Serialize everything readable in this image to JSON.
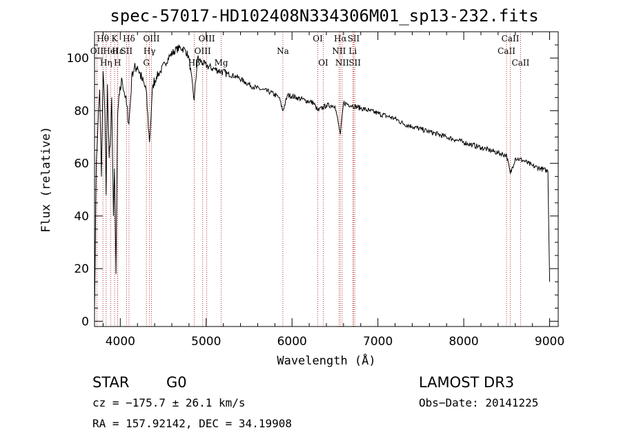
{
  "chart_data": {
    "type": "line",
    "title": "spec-57017-HD102408N334306M01_sp13-232.fits",
    "xlabel": "Wavelength (Å)",
    "ylabel": "Flux (relative)",
    "xlim": [
      3700,
      9100
    ],
    "ylim": [
      -2,
      110
    ],
    "xticks": [
      4000,
      5000,
      6000,
      7000,
      8000,
      9000
    ],
    "yticks": [
      0,
      20,
      40,
      60,
      80,
      100
    ],
    "grid": false,
    "series": [
      {
        "name": "flux",
        "x": [
          3700,
          3720,
          3740,
          3760,
          3780,
          3800,
          3820,
          3835,
          3850,
          3870,
          3889,
          3900,
          3920,
          3933,
          3950,
          3968,
          3990,
          4020,
          4060,
          4101,
          4140,
          4200,
          4250,
          4300,
          4340,
          4380,
          4420,
          4470,
          4520,
          4580,
          4640,
          4700,
          4760,
          4800,
          4861,
          4900,
          4960,
          5010,
          5080,
          5170,
          5250,
          5350,
          5450,
          5550,
          5650,
          5750,
          5850,
          5893,
          5950,
          6050,
          6150,
          6250,
          6300,
          6400,
          6500,
          6563,
          6600,
          6700,
          6800,
          6900,
          7000,
          7100,
          7200,
          7300,
          7400,
          7500,
          7600,
          7700,
          7800,
          7900,
          8000,
          8100,
          8200,
          8300,
          8400,
          8500,
          8542,
          8600,
          8700,
          8800,
          8900,
          8980,
          9000
        ],
        "y": [
          4,
          60,
          75,
          88,
          55,
          95,
          80,
          48,
          90,
          62,
          72,
          85,
          40,
          58,
          18,
          78,
          86,
          92,
          85,
          75,
          95,
          97,
          92,
          88,
          68,
          90,
          93,
          95,
          98,
          101,
          103,
          104,
          103,
          100,
          84,
          100,
          98,
          97,
          96,
          95,
          94,
          93,
          91,
          89,
          88,
          87,
          85,
          80,
          86,
          85,
          84,
          83,
          80,
          82,
          82,
          71,
          83,
          82,
          81,
          80,
          79,
          78,
          77,
          75,
          74,
          73,
          72,
          71,
          70,
          69,
          68,
          67,
          66,
          65,
          64,
          63,
          56,
          62,
          61,
          59,
          58,
          57,
          15
        ]
      }
    ],
    "line_markers": [
      {
        "label": "Hα",
        "x": 6563,
        "row": 0
      },
      {
        "label": "Hβ",
        "x": 4861,
        "row": 2
      },
      {
        "label": "Hγ",
        "x": 4340,
        "row": 1
      },
      {
        "label": "Hδ",
        "x": 4101,
        "row": 0
      },
      {
        "label": "Hε",
        "x": 3970,
        "row": 1
      },
      {
        "label": "Hθ",
        "x": 3798,
        "row": 0
      },
      {
        "label": "Hη",
        "x": 3835,
        "row": 2
      },
      {
        "label": "H",
        "x": 3968,
        "row": 2
      },
      {
        "label": "K",
        "x": 3933,
        "row": 0
      },
      {
        "label": "G",
        "x": 4304,
        "row": 2
      },
      {
        "label": "Mg",
        "x": 5175,
        "row": 2
      },
      {
        "label": "Na",
        "x": 5893,
        "row": 1
      },
      {
        "label": "CaII",
        "x": 8498,
        "row": 1
      },
      {
        "label": "CaII",
        "x": 8542,
        "row": 0
      },
      {
        "label": "CaII",
        "x": 8662,
        "row": 2
      },
      {
        "label": "OII",
        "x": 3727,
        "row": 1
      },
      {
        "label": "OIII",
        "x": 4959,
        "row": 1
      },
      {
        "label": "OIII",
        "x": 5007,
        "row": 0
      },
      {
        "label": "OIII",
        "x": 4363,
        "row": 0
      },
      {
        "label": "OI",
        "x": 6300,
        "row": 0
      },
      {
        "label": "OI",
        "x": 6364,
        "row": 2
      },
      {
        "label": "NII",
        "x": 6548,
        "row": 1
      },
      {
        "label": "NII",
        "x": 6584,
        "row": 2
      },
      {
        "label": "SII",
        "x": 6717,
        "row": 0
      },
      {
        "label": "SII",
        "x": 6731,
        "row": 2
      },
      {
        "label": "SII",
        "x": 4072,
        "row": 1
      },
      {
        "label": "HeI",
        "x": 3889,
        "row": 1
      },
      {
        "label": "Li",
        "x": 6708,
        "row": 1
      }
    ]
  },
  "info": {
    "class": "STAR",
    "subclass": "G0",
    "survey": "LAMOST DR3",
    "cz": "cz = −175.7 ± 26.1 km/s",
    "obs_date": "Obs−Date: 20141225",
    "coords": "RA = 157.92142, DEC =  34.19908"
  }
}
